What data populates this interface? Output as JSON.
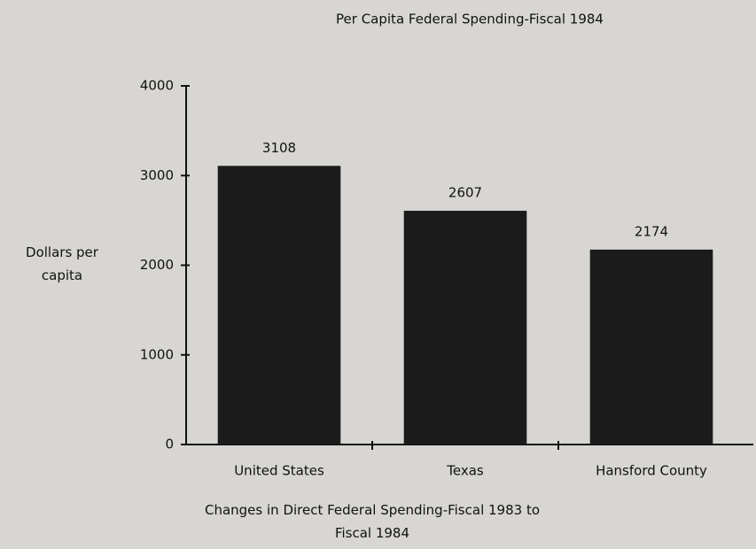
{
  "chart_data": {
    "type": "bar",
    "title": "Per Capita Federal Spending-Fiscal 1984",
    "y_label": "Dollars per capita",
    "x_label": "Changes in Direct Federal Spending-Fiscal 1983 to Fiscal 1984",
    "categories": [
      "United States",
      "Texas",
      "Hansford County"
    ],
    "values": [
      3108,
      2607,
      2174
    ],
    "color": "#1b1b1b",
    "ylim": [
      0,
      4000
    ],
    "yticks": [
      0,
      1000,
      2000,
      3000,
      4000
    ],
    "grid": false
  }
}
